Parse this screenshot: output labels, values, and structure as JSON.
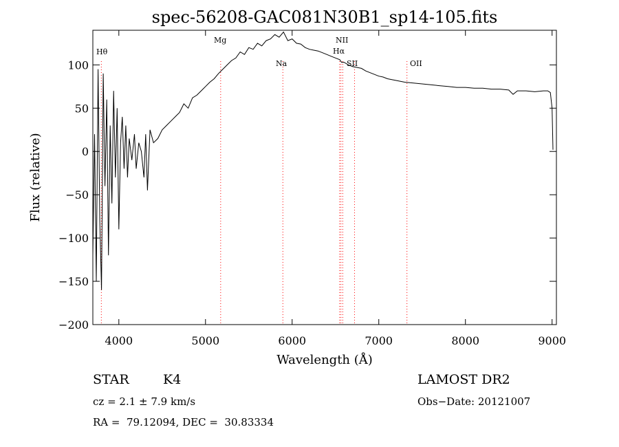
{
  "chart_data": {
    "type": "line",
    "title": "spec-56208-GAC081N30B1_sp14-105.fits",
    "xlabel": "Wavelength (Å)",
    "ylabel": "Flux (relative)",
    "xlim": [
      3700,
      9050
    ],
    "ylim": [
      -200,
      140
    ],
    "x_ticks": [
      4000,
      5000,
      6000,
      7000,
      8000,
      9000
    ],
    "y_ticks": [
      -200,
      -150,
      -100,
      -50,
      0,
      50,
      100
    ],
    "x_tick_labels": [
      "4000",
      "5000",
      "6000",
      "7000",
      "8000",
      "9000"
    ],
    "y_tick_labels": [
      "−200",
      "−150",
      "−100",
      "−50",
      "0",
      "50",
      "100"
    ],
    "line_color": "#000000",
    "marker_color": "#ff0000",
    "series": [
      {
        "x": [
          3700,
          3720,
          3740,
          3760,
          3780,
          3800,
          3820,
          3840,
          3860,
          3880,
          3900,
          3920,
          3940,
          3960,
          3980,
          4000,
          4020,
          4040,
          4060,
          4080,
          4100,
          4120,
          4150,
          4180,
          4200,
          4230,
          4260,
          4290,
          4310,
          4330,
          4360,
          4400,
          4450,
          4500,
          4550,
          4600,
          4650,
          4700,
          4750,
          4800,
          4850,
          4900,
          4950,
          5000,
          5050,
          5100,
          5150,
          5200,
          5250,
          5300,
          5350,
          5400,
          5450,
          5500,
          5550,
          5600,
          5650,
          5700,
          5750,
          5800,
          5850,
          5900,
          5950,
          6000,
          6050,
          6100,
          6150,
          6200,
          6250,
          6300,
          6350,
          6400,
          6450,
          6500,
          6550,
          6570,
          6600,
          6650,
          6700,
          6750,
          6800,
          6850,
          6900,
          6950,
          7000,
          7050,
          7100,
          7150,
          7200,
          7300,
          7400,
          7500,
          7600,
          7700,
          7800,
          7900,
          8000,
          8100,
          8200,
          8300,
          8400,
          8500,
          8550,
          8600,
          8700,
          8800,
          8900,
          8950,
          8980,
          9000,
          9010
        ],
        "y": [
          -120,
          20,
          -150,
          95,
          -80,
          -160,
          90,
          -40,
          60,
          -120,
          30,
          -60,
          70,
          -30,
          50,
          -90,
          10,
          40,
          -20,
          30,
          -30,
          15,
          -10,
          20,
          -20,
          10,
          0,
          -30,
          20,
          -45,
          25,
          10,
          15,
          25,
          30,
          35,
          40,
          45,
          55,
          50,
          62,
          65,
          70,
          75,
          80,
          84,
          90,
          95,
          100,
          105,
          108,
          115,
          112,
          120,
          118,
          125,
          122,
          128,
          130,
          135,
          132,
          138,
          128,
          130,
          125,
          124,
          120,
          118,
          117,
          116,
          114,
          112,
          110,
          108,
          106,
          103,
          103,
          100,
          98,
          97,
          96,
          93,
          91,
          89,
          87,
          86,
          84,
          83,
          82,
          80,
          79,
          78,
          77,
          76,
          75,
          74,
          74,
          73,
          73,
          72,
          72,
          71,
          66,
          70,
          70,
          69,
          70,
          70,
          68,
          50,
          2
        ]
      }
    ],
    "line_markers": [
      {
        "label": "Hθ",
        "x": 3798
      },
      {
        "label": "Mg",
        "x": 5175
      },
      {
        "label": "Na",
        "x": 5893
      },
      {
        "label": "NII",
        "x": 6548
      },
      {
        "label": "Hα",
        "x": 6563
      },
      {
        "label": "NII",
        "x": 6584
      },
      {
        "label": "SII",
        "x": 6720
      },
      {
        "label": "OII",
        "x": 7325
      }
    ],
    "grid": false
  },
  "info": {
    "object_class": "STAR",
    "subclass": "K4",
    "survey": "LAMOST DR2",
    "cz": "cz = 2.1 ± 7.9 km/s",
    "obs_date": "Obs−Date: 20121007",
    "coords": "RA =  79.12094, DEC =  30.83334"
  }
}
